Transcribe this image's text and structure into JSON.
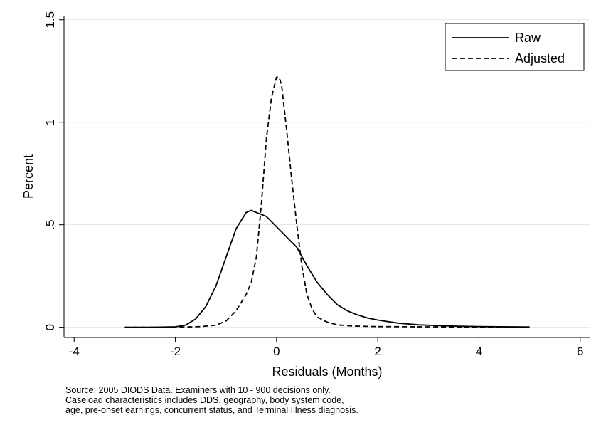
{
  "chart_data": {
    "type": "line",
    "xlabel": "Residuals (Months)",
    "ylabel": "Percent",
    "xlim": [
      -4.2,
      6.2
    ],
    "ylim": [
      -0.05,
      1.52
    ],
    "x_ticks": [
      -4,
      -2,
      0,
      2,
      4,
      6
    ],
    "x_tick_labels": [
      "-4",
      "-2",
      "0",
      "2",
      "4",
      "6"
    ],
    "y_ticks": [
      0,
      0.5,
      1,
      1.5
    ],
    "y_tick_labels": [
      "0",
      ".5",
      "1",
      "1.5"
    ],
    "grid": "horizontal",
    "legend_position": "top-right",
    "series": [
      {
        "name": "Raw",
        "style": "solid",
        "color": "#000000",
        "x": [
          -3.0,
          -2.5,
          -2.0,
          -1.8,
          -1.6,
          -1.4,
          -1.2,
          -1.0,
          -0.8,
          -0.6,
          -0.5,
          -0.4,
          -0.2,
          0.0,
          0.2,
          0.4,
          0.6,
          0.8,
          1.0,
          1.2,
          1.4,
          1.6,
          1.8,
          2.0,
          2.4,
          2.8,
          3.2,
          3.6,
          4.0,
          5.0
        ],
        "y": [
          0.0,
          0.0,
          0.002,
          0.01,
          0.04,
          0.1,
          0.2,
          0.34,
          0.48,
          0.56,
          0.57,
          0.56,
          0.54,
          0.49,
          0.44,
          0.39,
          0.3,
          0.22,
          0.16,
          0.11,
          0.08,
          0.06,
          0.045,
          0.035,
          0.02,
          0.012,
          0.008,
          0.005,
          0.003,
          0.001
        ]
      },
      {
        "name": "Adjusted",
        "style": "dashed",
        "color": "#000000",
        "x": [
          -3.0,
          -2.0,
          -1.5,
          -1.2,
          -1.0,
          -0.8,
          -0.6,
          -0.5,
          -0.4,
          -0.3,
          -0.2,
          -0.1,
          0.0,
          0.05,
          0.1,
          0.2,
          0.3,
          0.4,
          0.5,
          0.6,
          0.7,
          0.8,
          1.0,
          1.2,
          1.5,
          2.0,
          3.0,
          4.0,
          5.0
        ],
        "y": [
          0.0,
          0.0,
          0.003,
          0.01,
          0.03,
          0.08,
          0.16,
          0.22,
          0.34,
          0.6,
          0.92,
          1.12,
          1.22,
          1.22,
          1.18,
          0.96,
          0.72,
          0.5,
          0.3,
          0.16,
          0.09,
          0.05,
          0.025,
          0.012,
          0.006,
          0.003,
          0.002,
          0.001,
          0.001
        ]
      }
    ]
  },
  "notes": {
    "line1": "Source: 2005 DIODS Data. Examiners with 10 - 900 decisions only.",
    "line2": "Caseload characteristics includes DDS, geography, body system code,",
    "line3": "age, pre-onset earnings, concurrent status, and Terminal Illness diagnosis."
  }
}
